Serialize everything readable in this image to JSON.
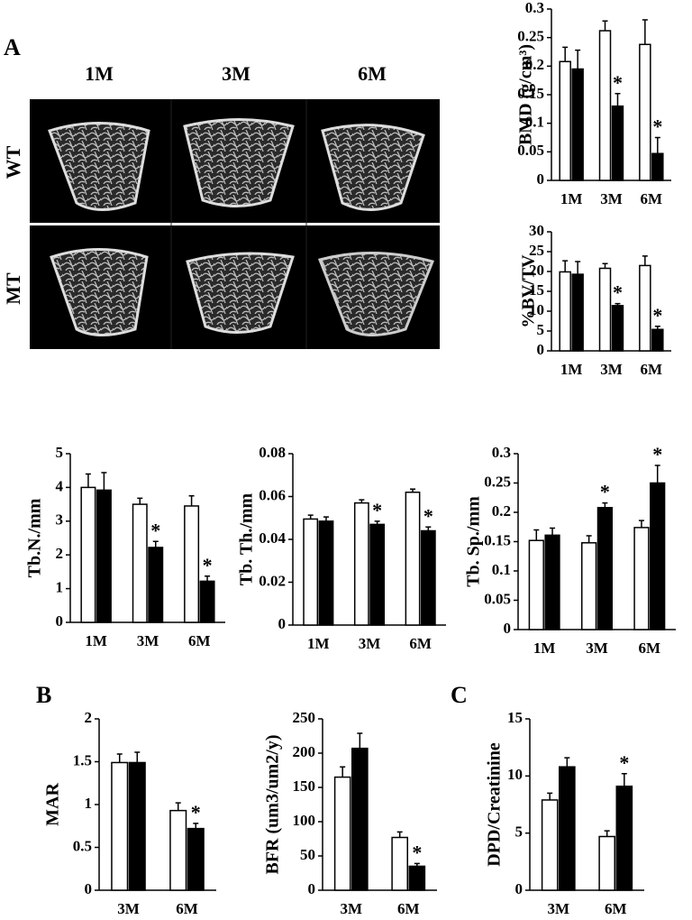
{
  "figure": {
    "panels": [
      "A",
      "B",
      "C"
    ],
    "image_columns": [
      "1M",
      "3M",
      "6M"
    ],
    "image_rows": [
      "WT",
      "MT"
    ]
  },
  "chart_data": [
    {
      "type": "bar",
      "ylabel": "BMD (g/cm³)",
      "categories": [
        "1M",
        "3M",
        "6M"
      ],
      "ylim": [
        0,
        0.3
      ],
      "yticks": [
        0,
        0.05,
        0.1,
        0.15,
        0.2,
        0.25,
        0.3
      ],
      "series": [
        {
          "color": "#ffffff",
          "values": [
            0.208,
            0.262,
            0.238
          ],
          "errors": [
            0.025,
            0.017,
            0.043
          ],
          "markers": [
            null,
            null,
            null
          ]
        },
        {
          "color": "#000000",
          "values": [
            0.195,
            0.13,
            0.047
          ],
          "errors": [
            0.033,
            0.022,
            0.028
          ],
          "markers": [
            null,
            "*",
            "*"
          ]
        }
      ]
    },
    {
      "type": "bar",
      "ylabel": "%BV/TV",
      "categories": [
        "1M",
        "3M",
        "6M"
      ],
      "ylim": [
        0,
        30
      ],
      "yticks": [
        0,
        5,
        10,
        15,
        20,
        25,
        30
      ],
      "series": [
        {
          "color": "#ffffff",
          "values": [
            19.9,
            20.8,
            21.5
          ],
          "errors": [
            2.8,
            1.2,
            2.4
          ],
          "markers": [
            null,
            null,
            null
          ]
        },
        {
          "color": "#000000",
          "values": [
            19.3,
            11.4,
            5.4
          ],
          "errors": [
            3.2,
            0.5,
            0.8
          ],
          "markers": [
            null,
            "*",
            "*"
          ]
        }
      ]
    },
    {
      "type": "bar",
      "ylabel": "Tb.N./mm",
      "categories": [
        "1M",
        "3M",
        "6M"
      ],
      "ylim": [
        0,
        5
      ],
      "yticks": [
        0,
        1,
        2,
        3,
        4,
        5
      ],
      "series": [
        {
          "color": "#ffffff",
          "values": [
            4.0,
            3.5,
            3.45
          ],
          "errors": [
            0.4,
            0.18,
            0.3
          ],
          "markers": [
            null,
            null,
            null
          ]
        },
        {
          "color": "#000000",
          "values": [
            3.92,
            2.22,
            1.22
          ],
          "errors": [
            0.52,
            0.18,
            0.15
          ],
          "markers": [
            null,
            "*",
            "*"
          ]
        }
      ]
    },
    {
      "type": "bar",
      "ylabel": "Tb. Th./mm",
      "categories": [
        "1M",
        "3M",
        "6M"
      ],
      "ylim": [
        0,
        0.08
      ],
      "yticks": [
        0,
        0.02,
        0.04,
        0.06,
        0.08
      ],
      "series": [
        {
          "color": "#ffffff",
          "values": [
            0.0495,
            0.057,
            0.062
          ],
          "errors": [
            0.0018,
            0.0015,
            0.0015
          ],
          "markers": [
            null,
            null,
            null
          ]
        },
        {
          "color": "#000000",
          "values": [
            0.0485,
            0.047,
            0.044
          ],
          "errors": [
            0.002,
            0.0015,
            0.0018
          ],
          "markers": [
            null,
            "*",
            "*"
          ]
        }
      ]
    },
    {
      "type": "bar",
      "ylabel": "Tb. Sp./mm",
      "categories": [
        "1M",
        "3M",
        "6M"
      ],
      "ylim": [
        0,
        0.3
      ],
      "yticks": [
        0,
        0.05,
        0.1,
        0.15,
        0.2,
        0.25,
        0.3
      ],
      "series": [
        {
          "color": "#ffffff",
          "values": [
            0.152,
            0.148,
            0.174
          ],
          "errors": [
            0.018,
            0.012,
            0.012
          ],
          "markers": [
            null,
            null,
            null
          ]
        },
        {
          "color": "#000000",
          "values": [
            0.161,
            0.208,
            0.25
          ],
          "errors": [
            0.012,
            0.008,
            0.03
          ],
          "markers": [
            null,
            "*",
            "*"
          ]
        }
      ]
    },
    {
      "type": "bar",
      "ylabel": "MAR",
      "categories": [
        "3M",
        "6M"
      ],
      "ylim": [
        0,
        2
      ],
      "yticks": [
        0,
        0.5,
        1,
        1.5,
        2
      ],
      "series": [
        {
          "color": "#ffffff",
          "values": [
            1.49,
            0.93
          ],
          "errors": [
            0.1,
            0.09
          ],
          "markers": [
            null,
            null
          ]
        },
        {
          "color": "#000000",
          "values": [
            1.49,
            0.72
          ],
          "errors": [
            0.12,
            0.06
          ],
          "markers": [
            null,
            "*"
          ]
        }
      ]
    },
    {
      "type": "bar",
      "ylabel": "BFR (um3/um2/y)",
      "categories": [
        "3M",
        "6M"
      ],
      "ylim": [
        0,
        250
      ],
      "yticks": [
        0,
        50,
        100,
        150,
        200,
        250
      ],
      "series": [
        {
          "color": "#ffffff",
          "values": [
            165,
            77
          ],
          "errors": [
            15,
            8
          ],
          "markers": [
            null,
            null
          ]
        },
        {
          "color": "#000000",
          "values": [
            207,
            35
          ],
          "errors": [
            22,
            4
          ],
          "markers": [
            null,
            "*"
          ]
        }
      ]
    },
    {
      "type": "bar",
      "ylabel": "DPD/Creatinine",
      "categories": [
        "3M",
        "6M"
      ],
      "ylim": [
        0,
        15
      ],
      "yticks": [
        0,
        5,
        10,
        15
      ],
      "series": [
        {
          "color": "#ffffff",
          "values": [
            7.9,
            4.7
          ],
          "errors": [
            0.6,
            0.5
          ],
          "markers": [
            null,
            null
          ]
        },
        {
          "color": "#000000",
          "values": [
            10.8,
            9.1
          ],
          "errors": [
            0.8,
            1.1
          ],
          "markers": [
            null,
            "*"
          ]
        }
      ]
    }
  ]
}
